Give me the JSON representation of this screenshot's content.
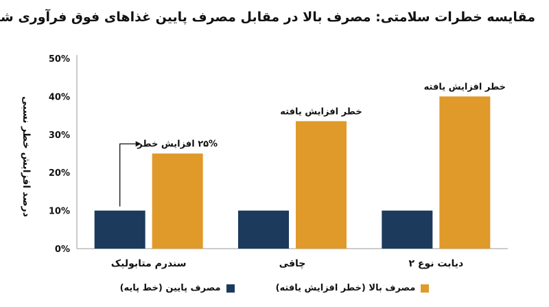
{
  "chart_data": {
    "type": "bar",
    "title": "مقایسه خطرات سلامتی: مصرف بالا در مقابل مصرف پایین غذاهای فوق فرآوری شده",
    "ylabel": "درصد افزایش خطر نسبی",
    "xlabel": "",
    "ylim": [
      0,
      50
    ],
    "yticks": [
      0,
      10,
      20,
      30,
      40,
      50
    ],
    "ytick_labels": [
      "0%",
      "10%",
      "20%",
      "30%",
      "40%",
      "50%"
    ],
    "categories": [
      "سندرم متابولیک",
      "چاقی",
      "دیابت نوع ۲"
    ],
    "series": [
      {
        "name": "مصرف پایین (خط پایه)",
        "color": "#1b3a5c",
        "values": [
          10,
          10,
          10
        ]
      },
      {
        "name": "مصرف بالا (خطر افزایش یافته)",
        "color": "#e09a2a",
        "values": [
          25,
          33.5,
          40
        ]
      }
    ],
    "annotations": [
      {
        "category_index": 0,
        "series_index": 1,
        "text": "۲۵% افزایش خطر",
        "arrow": true
      },
      {
        "category_index": 1,
        "series_index": 1,
        "text": "خطر افزایش یافته",
        "arrow": false
      },
      {
        "category_index": 2,
        "series_index": 1,
        "text": "خطر افزایش یافته",
        "arrow": false
      }
    ],
    "grid": false,
    "legend_position": "bottom"
  }
}
